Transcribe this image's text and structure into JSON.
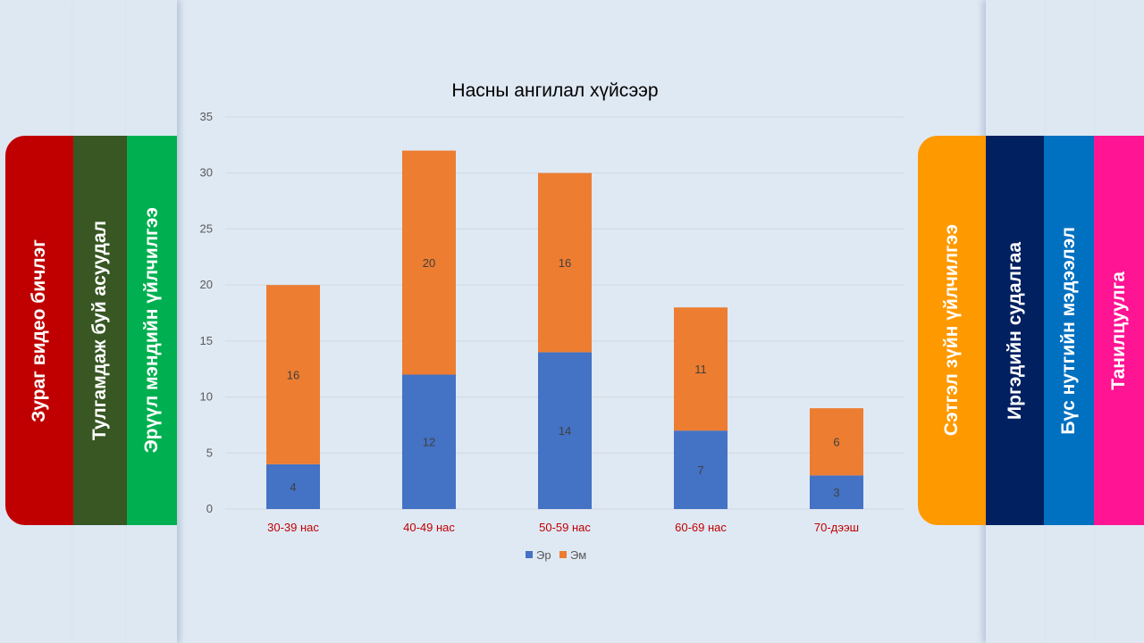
{
  "left_tabs": [
    {
      "label": "Зураг видео бичлэг",
      "color": "#c00000"
    },
    {
      "label": "Тулгамдаж буй асуудал",
      "color": "#385723"
    },
    {
      "label": "Эрүүл мэндийн үйлчилгээ",
      "color": "#00b050"
    }
  ],
  "right_tabs": [
    {
      "label": "Сэтгэл зүйн үйлчилгээ",
      "color": "#ff9900"
    },
    {
      "label": "Иргэдийн судалгаа",
      "color": "#002060"
    },
    {
      "label": "Бүс нутгийн мэдээлэл",
      "color": "#0070c0"
    },
    {
      "label": "Танилцуулга",
      "color": "#ff1493"
    }
  ],
  "chart_data": {
    "type": "bar",
    "stacked": true,
    "title": "Насны ангилал хүйсээр",
    "categories": [
      "30-39 нас",
      "40-49 нас",
      "50-59 нас",
      "60-69 нас",
      "70-дээш"
    ],
    "series": [
      {
        "name": "Эр",
        "values": [
          4,
          12,
          14,
          7,
          3
        ],
        "color": "#4472c4"
      },
      {
        "name": "Эм",
        "values": [
          16,
          20,
          16,
          11,
          6
        ],
        "color": "#ed7d31"
      }
    ],
    "ylim": [
      0,
      35
    ],
    "yticks": [
      0,
      5,
      10,
      15,
      20,
      25,
      30,
      35
    ],
    "grid": true,
    "legend_position": "bottom"
  }
}
